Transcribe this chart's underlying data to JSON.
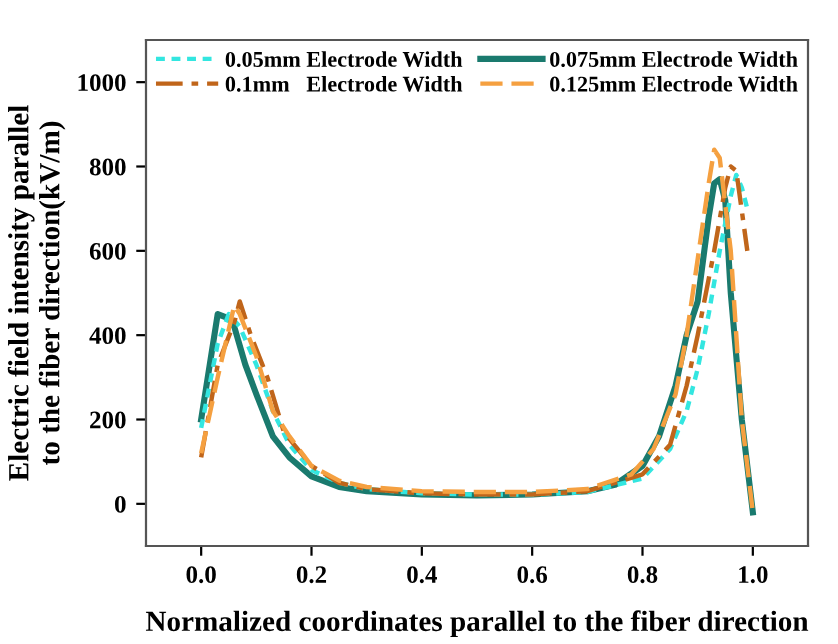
{
  "chart_data": {
    "type": "line",
    "xlabel": "Normalized coordinates parallel to the fiber direction",
    "ylabel": "Electric field intensity parallel\nto the fiber direction(kV/m)",
    "xlim": [
      -0.1,
      1.1
    ],
    "ylim": [
      -100,
      1100
    ],
    "xticks": [
      {
        "value": 0,
        "label": "0.0"
      },
      0.2,
      0.4,
      0.6,
      0.8,
      {
        "value": 1,
        "label": "1.0"
      }
    ],
    "yticks": [
      0,
      200,
      400,
      600,
      800,
      1000
    ],
    "grid": false,
    "legend": "top",
    "marker": "none",
    "series": [
      {
        "name": "0.05mm Electrode Width",
        "color": "#33e6e0",
        "line_style": "dotted",
        "x": [
          0,
          0.03,
          0.05,
          0.07,
          0.1,
          0.13,
          0.16,
          0.2,
          0.25,
          0.3,
          0.4,
          0.5,
          0.6,
          0.7,
          0.8,
          0.85,
          0.88,
          0.9,
          0.92,
          0.94,
          0.96,
          0.97,
          0.98,
          0.99
        ],
        "values": [
          180,
          380,
          450,
          420,
          330,
          220,
          140,
          80,
          50,
          35,
          25,
          22,
          22,
          28,
          60,
          130,
          220,
          320,
          450,
          600,
          730,
          780,
          750,
          700
        ]
      },
      {
        "name": "0.075mm Electrode Width",
        "color": "#1a7a6e",
        "line_style": "solid",
        "x": [
          0,
          0.03,
          0.05,
          0.06,
          0.08,
          0.1,
          0.13,
          0.16,
          0.2,
          0.25,
          0.3,
          0.4,
          0.5,
          0.6,
          0.7,
          0.75,
          0.8,
          0.83,
          0.86,
          0.88,
          0.9,
          0.91,
          0.92,
          0.93,
          0.94,
          0.95,
          0.96,
          0.98,
          1.0
        ],
        "values": [
          200,
          450,
          440,
          420,
          330,
          260,
          160,
          110,
          65,
          40,
          30,
          22,
          20,
          22,
          30,
          45,
          90,
          160,
          280,
          400,
          480,
          580,
          680,
          760,
          770,
          720,
          500,
          200,
          -20
        ]
      },
      {
        "name": "0.1mm   Electrode Width",
        "color": "#c0651a",
        "line_style": "dashdot",
        "x": [
          0,
          0.03,
          0.06,
          0.07,
          0.09,
          0.12,
          0.15,
          0.2,
          0.25,
          0.3,
          0.4,
          0.5,
          0.6,
          0.7,
          0.8,
          0.85,
          0.88,
          0.9,
          0.93,
          0.95,
          0.96,
          0.97,
          0.99
        ],
        "values": [
          110,
          330,
          430,
          480,
          400,
          300,
          170,
          90,
          50,
          35,
          25,
          22,
          22,
          30,
          70,
          140,
          280,
          400,
          600,
          750,
          800,
          790,
          600
        ]
      },
      {
        "name": "0.125mm Electrode Width",
        "color": "#f5a040",
        "line_style": "dashed",
        "x": [
          0,
          0.03,
          0.06,
          0.07,
          0.1,
          0.13,
          0.16,
          0.2,
          0.25,
          0.3,
          0.4,
          0.5,
          0.6,
          0.7,
          0.78,
          0.82,
          0.86,
          0.88,
          0.9,
          0.92,
          0.93,
          0.94,
          0.96,
          0.98,
          1.0
        ],
        "values": [
          120,
          300,
          470,
          450,
          350,
          220,
          160,
          90,
          55,
          40,
          30,
          28,
          28,
          35,
          70,
          130,
          260,
          400,
          580,
          760,
          840,
          820,
          600,
          200,
          -20
        ]
      }
    ]
  }
}
